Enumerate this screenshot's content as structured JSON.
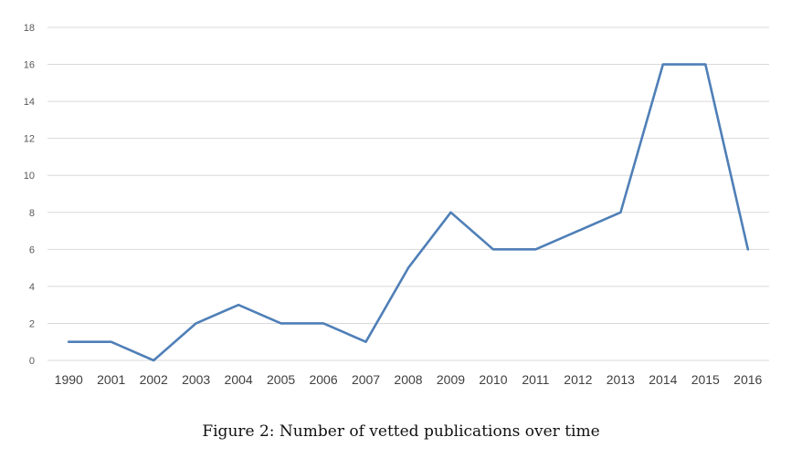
{
  "caption": "Figure 2: Number of vetted publications over time",
  "chart_data": {
    "type": "line",
    "title": "",
    "xlabel": "",
    "ylabel": "",
    "categories": [
      "1990",
      "2001",
      "2002",
      "2003",
      "2004",
      "2005",
      "2006",
      "2007",
      "2008",
      "2009",
      "2010",
      "2011",
      "2012",
      "2013",
      "2014",
      "2015",
      "2016"
    ],
    "series": [
      {
        "values": [
          1,
          1,
          0,
          2,
          3,
          2,
          2,
          1,
          5,
          8,
          6,
          6,
          7,
          8,
          16,
          16,
          6
        ],
        "color": "#4f7fb7"
      }
    ],
    "ylim": [
      0,
      18
    ],
    "yticks": [
      "0",
      "2",
      "4",
      "6",
      "8",
      "10",
      "12",
      "14",
      "16",
      "18"
    ],
    "grid": true,
    "legend": "none"
  }
}
